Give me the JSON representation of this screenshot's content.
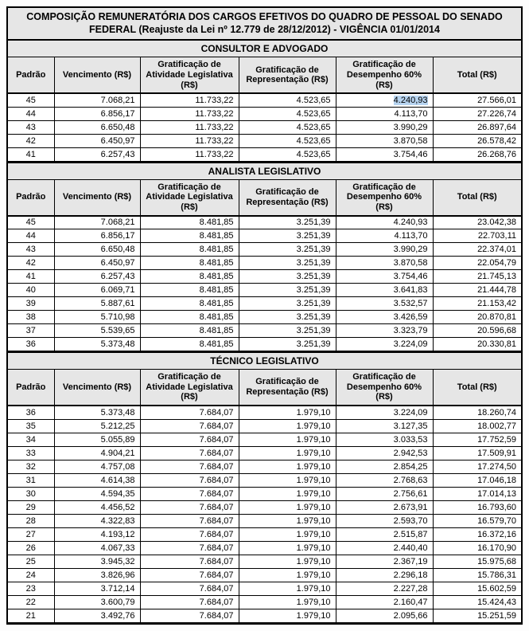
{
  "title_line1": "COMPOSIÇÃO REMUNERATÓRIA DOS CARGOS EFETIVOS DO QUADRO DE PESSOAL DO SENADO",
  "title_line2": "FEDERAL (Reajuste da Lei nº 12.779 de 28/12/2012)  -  VIGÊNCIA 01/01/2014",
  "columns": {
    "padrao": "Padrão",
    "vencimento": "Vencimento (R$)",
    "grat_atividade": "Gratificação de Atividade Legislativa (R$)",
    "grat_repr": "Gratificação de Representação (R$)",
    "grat_desemp": "Gratificação de Desempenho 60% (R$)",
    "total": "Total (R$)"
  },
  "colors": {
    "header_bg": "#e6e6e6",
    "border": "#000000",
    "highlight": "#b7d4f0"
  },
  "sections": [
    {
      "title": "CONSULTOR E ADVOGADO",
      "highlight": {
        "row": 0,
        "col": 4
      },
      "rows": [
        [
          "45",
          "7.068,21",
          "11.733,22",
          "4.523,65",
          "4.240,93",
          "27.566,01"
        ],
        [
          "44",
          "6.856,17",
          "11.733,22",
          "4.523,65",
          "4.113,70",
          "27.226,74"
        ],
        [
          "43",
          "6.650,48",
          "11.733,22",
          "4.523,65",
          "3.990,29",
          "26.897,64"
        ],
        [
          "42",
          "6.450,97",
          "11.733,22",
          "4.523,65",
          "3.870,58",
          "26.578,42"
        ],
        [
          "41",
          "6.257,43",
          "11.733,22",
          "4.523,65",
          "3.754,46",
          "26.268,76"
        ]
      ]
    },
    {
      "title": "ANALISTA LEGISLATIVO",
      "rows": [
        [
          "45",
          "7.068,21",
          "8.481,85",
          "3.251,39",
          "4.240,93",
          "23.042,38"
        ],
        [
          "44",
          "6.856,17",
          "8.481,85",
          "3.251,39",
          "4.113,70",
          "22.703,11"
        ],
        [
          "43",
          "6.650,48",
          "8.481,85",
          "3.251,39",
          "3.990,29",
          "22.374,01"
        ],
        [
          "42",
          "6.450,97",
          "8.481,85",
          "3.251,39",
          "3.870,58",
          "22.054,79"
        ],
        [
          "41",
          "6.257,43",
          "8.481,85",
          "3.251,39",
          "3.754,46",
          "21.745,13"
        ],
        [
          "40",
          "6.069,71",
          "8.481,85",
          "3.251,39",
          "3.641,83",
          "21.444,78"
        ],
        [
          "39",
          "5.887,61",
          "8.481,85",
          "3.251,39",
          "3.532,57",
          "21.153,42"
        ],
        [
          "38",
          "5.710,98",
          "8.481,85",
          "3.251,39",
          "3.426,59",
          "20.870,81"
        ],
        [
          "37",
          "5.539,65",
          "8.481,85",
          "3.251,39",
          "3.323,79",
          "20.596,68"
        ],
        [
          "36",
          "5.373,48",
          "8.481,85",
          "3.251,39",
          "3.224,09",
          "20.330,81"
        ]
      ]
    },
    {
      "title": "TÉCNICO LEGISLATIVO",
      "rows": [
        [
          "36",
          "5.373,48",
          "7.684,07",
          "1.979,10",
          "3.224,09",
          "18.260,74"
        ],
        [
          "35",
          "5.212,25",
          "7.684,07",
          "1.979,10",
          "3.127,35",
          "18.002,77"
        ],
        [
          "34",
          "5.055,89",
          "7.684,07",
          "1.979,10",
          "3.033,53",
          "17.752,59"
        ],
        [
          "33",
          "4.904,21",
          "7.684,07",
          "1.979,10",
          "2.942,53",
          "17.509,91"
        ],
        [
          "32",
          "4.757,08",
          "7.684,07",
          "1.979,10",
          "2.854,25",
          "17.274,50"
        ],
        [
          "31",
          "4.614,38",
          "7.684,07",
          "1.979,10",
          "2.768,63",
          "17.046,18"
        ],
        [
          "30",
          "4.594,35",
          "7.684,07",
          "1.979,10",
          "2.756,61",
          "17.014,13"
        ],
        [
          "29",
          "4.456,52",
          "7.684,07",
          "1.979,10",
          "2.673,91",
          "16.793,60"
        ],
        [
          "28",
          "4.322,83",
          "7.684,07",
          "1.979,10",
          "2.593,70",
          "16.579,70"
        ],
        [
          "27",
          "4.193,12",
          "7.684,07",
          "1.979,10",
          "2.515,87",
          "16.372,16"
        ],
        [
          "26",
          "4.067,33",
          "7.684,07",
          "1.979,10",
          "2.440,40",
          "16.170,90"
        ],
        [
          "25",
          "3.945,32",
          "7.684,07",
          "1.979,10",
          "2.367,19",
          "15.975,68"
        ],
        [
          "24",
          "3.826,96",
          "7.684,07",
          "1.979,10",
          "2.296,18",
          "15.786,31"
        ],
        [
          "23",
          "3.712,14",
          "7.684,07",
          "1.979,10",
          "2.227,28",
          "15.602,59"
        ],
        [
          "22",
          "3.600,79",
          "7.684,07",
          "1.979,10",
          "2.160,47",
          "15.424,43"
        ],
        [
          "21",
          "3.492,76",
          "7.684,07",
          "1.979,10",
          "2.095,66",
          "15.251,59"
        ]
      ]
    }
  ]
}
